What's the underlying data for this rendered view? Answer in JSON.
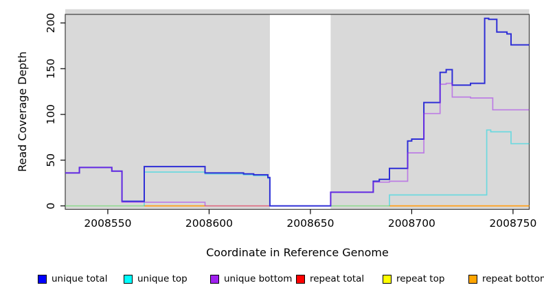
{
  "figure": {
    "background": "#FFFFFF"
  },
  "chart_data": {
    "type": "step-line",
    "title": "",
    "xlabel": "Coordinate in Reference Genome",
    "ylabel": "Read Coverage Depth",
    "xlim": [
      2008529,
      2008758
    ],
    "ylim": [
      0,
      214
    ],
    "grid": false,
    "plot_background": "#D9D9D9",
    "gap_band": {
      "x0": 2008630,
      "x1": 2008660,
      "color": "#FFFFFF"
    },
    "x_ticks": {
      "values": [
        2008550,
        2008600,
        2008650,
        2008700,
        2008750
      ],
      "labels": [
        "2008550",
        "2008600",
        "2008650",
        "2008700",
        "2008750"
      ]
    },
    "y_ticks": {
      "values": [
        0,
        50,
        100,
        150,
        200
      ],
      "labels": [
        "0",
        "50",
        "100",
        "150",
        "200"
      ]
    },
    "series": [
      {
        "name": "unique-top-repeat-top-overlap-at-zero",
        "legend": false,
        "line_color": "#86D886",
        "opacity": 0.95,
        "width": 1.6,
        "segments": [
          [
            [
              2008529,
              0
            ],
            [
              2008568,
              0
            ]
          ],
          [
            [
              2008660,
              0
            ],
            [
              2008689,
              0
            ]
          ]
        ]
      },
      {
        "name": "repeat total",
        "legend": true,
        "line_color": "#E03858",
        "opacity": 0.75,
        "width": 1.6,
        "segments": [
          [
            [
              2008598,
              0
            ],
            [
              2008630,
              0
            ]
          ]
        ]
      },
      {
        "name": "repeat top",
        "legend": true,
        "line_color": "#F0F000",
        "opacity": 0.9,
        "width": 1.6,
        "segments": []
      },
      {
        "name": "repeat bottom",
        "legend": true,
        "line_color": "#FF9E14",
        "opacity": 1,
        "width": 1.8,
        "segments": [
          [
            [
              2008568,
              0
            ],
            [
              2008598,
              0
            ]
          ],
          [
            [
              2008689,
              0
            ],
            [
              2008758,
              0
            ]
          ]
        ]
      },
      {
        "name": "unique top",
        "legend": true,
        "line_color": "#00D9E6",
        "opacity": 0.5,
        "width": 1.7,
        "segments": [
          [
            [
              2008568,
              0
            ],
            [
              2008568,
              37
            ],
            [
              2008598,
              35
            ],
            [
              2008617,
              34
            ],
            [
              2008622,
              33
            ],
            [
              2008629,
              30
            ],
            [
              2008630,
              0
            ]
          ],
          [
            [
              2008689,
              0
            ],
            [
              2008689,
              12
            ],
            [
              2008737,
              83
            ],
            [
              2008739,
              81
            ],
            [
              2008749,
              68
            ],
            [
              2008758,
              68
            ]
          ]
        ]
      },
      {
        "name": "unique total",
        "legend": true,
        "line_color": "#2E2ED6",
        "opacity": 1,
        "width": 2,
        "segments": [
          [
            [
              2008529,
              36
            ],
            [
              2008536,
              42
            ],
            [
              2008552,
              38
            ],
            [
              2008557,
              5
            ],
            [
              2008568,
              43
            ],
            [
              2008598,
              36
            ],
            [
              2008617,
              35
            ],
            [
              2008622,
              34
            ],
            [
              2008629,
              31
            ],
            [
              2008630,
              0
            ],
            [
              2008660,
              15
            ],
            [
              2008681,
              27
            ],
            [
              2008684,
              29
            ],
            [
              2008689,
              41
            ],
            [
              2008698,
              71
            ],
            [
              2008700,
              73
            ],
            [
              2008706,
              113
            ],
            [
              2008714,
              146
            ],
            [
              2008717,
              149
            ],
            [
              2008720,
              132
            ],
            [
              2008729,
              134
            ],
            [
              2008736,
              205
            ],
            [
              2008738,
              204
            ],
            [
              2008742,
              190
            ],
            [
              2008747,
              188
            ],
            [
              2008749,
              176
            ],
            [
              2008758,
              176
            ]
          ]
        ]
      },
      {
        "name": "unique bottom",
        "legend": true,
        "line_color": "#A020F0",
        "opacity": 0.5,
        "width": 1.7,
        "segments": [
          [
            [
              2008529,
              36
            ],
            [
              2008536,
              42
            ],
            [
              2008552,
              38
            ],
            [
              2008557,
              4
            ],
            [
              2008598,
              0
            ]
          ],
          [
            [
              2008660,
              0
            ],
            [
              2008660,
              15
            ],
            [
              2008681,
              26
            ],
            [
              2008689,
              27
            ],
            [
              2008698,
              58
            ],
            [
              2008706,
              101
            ],
            [
              2008714,
              133
            ],
            [
              2008717,
              134
            ],
            [
              2008720,
              119
            ],
            [
              2008729,
              118
            ],
            [
              2008740,
              105
            ],
            [
              2008758,
              105
            ]
          ]
        ]
      }
    ],
    "legend": {
      "position": "bottom",
      "items": [
        {
          "label": "unique total",
          "color": "#0000FF"
        },
        {
          "label": "unique top",
          "color": "#00FFFF"
        },
        {
          "label": "unique bottom",
          "color": "#A020F0"
        },
        {
          "label": "repeat total",
          "color": "#FF0000"
        },
        {
          "label": "repeat top",
          "color": "#FFFF00"
        },
        {
          "label": "repeat bottom",
          "color": "#FFA500"
        }
      ]
    }
  }
}
